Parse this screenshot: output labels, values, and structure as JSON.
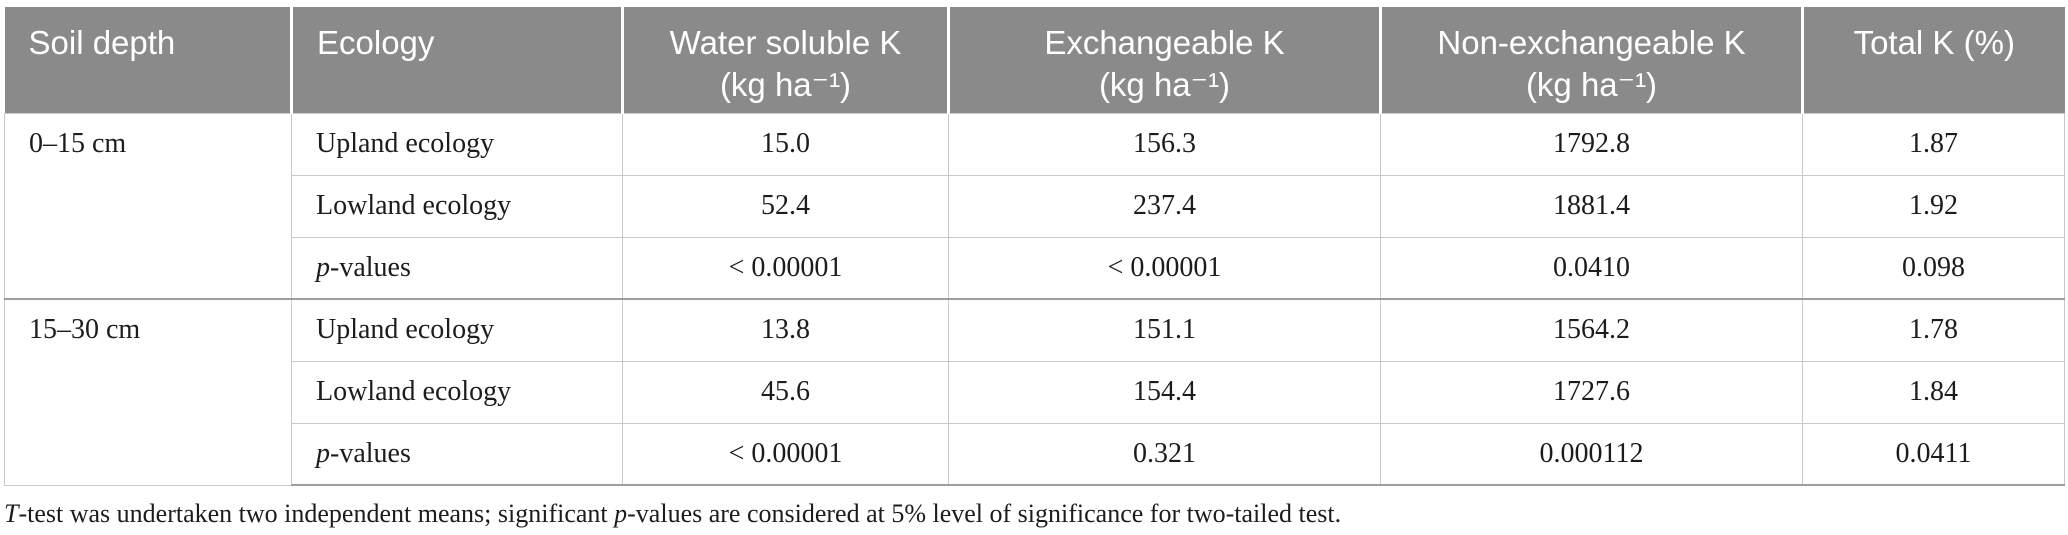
{
  "colors": {
    "header_bg": "#8a8a8a",
    "header_text": "#ffffff",
    "border_light": "#c9c9c9",
    "border_dark": "#9d9d9d",
    "body_text": "#1c1c1c"
  },
  "table": {
    "headers": [
      {
        "title": "Soil depth",
        "unit": ""
      },
      {
        "title": "Ecology",
        "unit": ""
      },
      {
        "title": "Water soluble K",
        "unit": "(kg ha⁻¹)"
      },
      {
        "title": "Exchangeable K",
        "unit": "(kg ha⁻¹)"
      },
      {
        "title": "Non-exchangeable K",
        "unit": "(kg ha⁻¹)"
      },
      {
        "title": "Total K (%)",
        "unit": ""
      }
    ],
    "sections": [
      {
        "depth": "0–15 cm",
        "upland": {
          "label": "Upland ecology",
          "values": [
            "15.0",
            "156.3",
            "1792.8",
            "1.87"
          ]
        },
        "lowland": {
          "label": "Lowland ecology",
          "values": [
            "52.4",
            "237.4",
            "1881.4",
            "1.92"
          ]
        },
        "pvalues": {
          "label_italic": "p",
          "label_rest": "-values",
          "values": [
            "< 0.00001",
            "< 0.00001",
            "0.0410",
            "0.098"
          ]
        }
      },
      {
        "depth": "15–30 cm",
        "upland": {
          "label": "Upland ecology",
          "values": [
            "13.8",
            "151.1",
            "1564.2",
            "1.78"
          ]
        },
        "lowland": {
          "label": "Lowland ecology",
          "values": [
            "45.6",
            "154.4",
            "1727.6",
            "1.84"
          ]
        },
        "pvalues": {
          "label_italic": "p",
          "label_rest": "-values",
          "values": [
            "< 0.00001",
            "0.321",
            "0.000112",
            "0.0411"
          ]
        }
      }
    ]
  },
  "footnote": {
    "t_italic": "T",
    "part1": "-test was undertaken two independent means; significant ",
    "p_italic": "p",
    "part2": "-values are considered at 5% level of significance for two-tailed test."
  }
}
